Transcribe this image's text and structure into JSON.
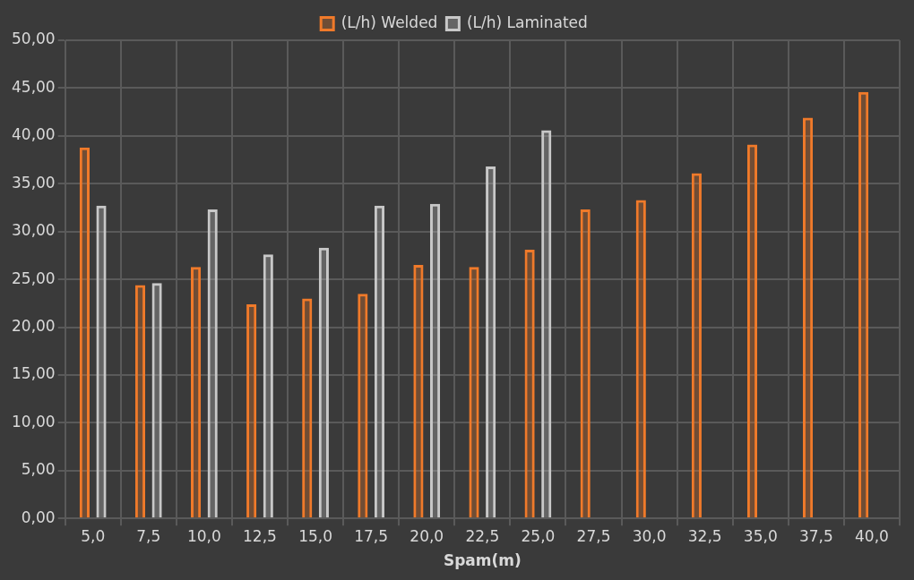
{
  "chart_data": {
    "type": "bar",
    "xlabel": "Spam(m)",
    "categories": [
      "5,0",
      "7,5",
      "10,0",
      "12,5",
      "15,0",
      "17,5",
      "20,0",
      "22,5",
      "25,0",
      "27,5",
      "30,0",
      "32,5",
      "35,0",
      "37,5",
      "40,0"
    ],
    "series": [
      {
        "name": "(L/h) Welded",
        "color": "#f07a2a",
        "values": [
          38.8,
          24.4,
          26.3,
          22.4,
          23.0,
          23.5,
          26.5,
          26.3,
          28.1,
          32.3,
          33.3,
          36.1,
          39.1,
          41.9,
          44.6
        ]
      },
      {
        "name": "(L/h) Laminated",
        "color": "#c8c8c8",
        "values": [
          32.7,
          24.6,
          32.3,
          27.6,
          28.3,
          32.7,
          32.9,
          36.8,
          40.6,
          null,
          null,
          null,
          null,
          null,
          null
        ]
      }
    ],
    "ylim": [
      0,
      50
    ],
    "yticks": [
      {
        "value": 0,
        "label": "0,00"
      },
      {
        "value": 5,
        "label": "5,00"
      },
      {
        "value": 10,
        "label": "10,00"
      },
      {
        "value": 15,
        "label": "15,00"
      },
      {
        "value": 20,
        "label": "20,00"
      },
      {
        "value": 25,
        "label": "25,00"
      },
      {
        "value": 30,
        "label": "30,00"
      },
      {
        "value": 35,
        "label": "35,00"
      },
      {
        "value": 40,
        "label": "40,00"
      },
      {
        "value": 45,
        "label": "45,00"
      },
      {
        "value": 50,
        "label": "50,00"
      }
    ],
    "grid": true,
    "legend": "top"
  }
}
